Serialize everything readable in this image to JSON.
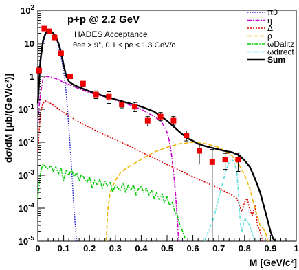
{
  "chart_data": {
    "type": "line",
    "xlabel": "M [GeV/c²]",
    "ylabel": "dσ/dM [μb/(GeV/c²)]",
    "xlim": [
      0,
      1
    ],
    "ylim": [
      1e-05,
      100
    ],
    "y_scale": "log",
    "x_ticks": [
      "0",
      "0.1",
      "0.2",
      "0.3",
      "0.4",
      "0.5",
      "0.6",
      "0.7",
      "0.8",
      "0.9",
      "1"
    ],
    "y_ticks": [
      {
        "base": "10",
        "exp": "2"
      },
      {
        "base": "10",
        "exp": ""
      },
      {
        "base": "1",
        "exp": ""
      },
      {
        "base": "10",
        "exp": "-1"
      },
      {
        "base": "10",
        "exp": "-2"
      },
      {
        "base": "10",
        "exp": "-3"
      },
      {
        "base": "10",
        "exp": "-4"
      },
      {
        "base": "10",
        "exp": "-5"
      }
    ],
    "annotations": {
      "title": "p+p @ 2.2 GeV",
      "subtitle": "HADES Acceptance",
      "cuts": "θee > 9°, 0.1 < pe < 1.3 GeV/c"
    },
    "legend": {
      "placement": "top-right",
      "entries": [
        {
          "label": "π0",
          "color": "#2222cc",
          "dash": "1.5,2"
        },
        {
          "label": "η",
          "color": "#cc00cc",
          "dash": "6,2,1.5,2"
        },
        {
          "label": "Δ",
          "color": "#dd0000",
          "dash": "2,2"
        },
        {
          "label": "ρ",
          "color": "#f0b400",
          "dash": "6,3"
        },
        {
          "label": "ωDalitz",
          "color": "#00cc00",
          "dash": "5,2,1.5,2"
        },
        {
          "label": "ωdirect",
          "color": "#55dddd",
          "dash": "5,2,1.5,2"
        },
        {
          "label": "Sum",
          "color": "#000000",
          "dash": ""
        }
      ]
    },
    "series": [
      {
        "name": "π0",
        "color": "#2222cc",
        "dash": "1.5,2",
        "width": 1.6,
        "x": [
          0.0,
          0.01,
          0.02,
          0.03,
          0.04,
          0.05,
          0.06,
          0.07,
          0.08,
          0.09,
          0.1,
          0.11,
          0.12,
          0.13,
          0.14,
          0.15
        ],
        "y": [
          0.1,
          2.2,
          10,
          18,
          22,
          22,
          19,
          14,
          8,
          4,
          1.5,
          0.3,
          0.03,
          0.002,
          0.0001,
          1e-05
        ]
      },
      {
        "name": "η",
        "color": "#cc00cc",
        "dash": "6,2,1.5,2",
        "width": 1.6,
        "x": [
          0.0,
          0.01,
          0.02,
          0.03,
          0.05,
          0.08,
          0.1,
          0.15,
          0.2,
          0.25,
          0.3,
          0.35,
          0.4,
          0.45,
          0.48,
          0.5,
          0.51,
          0.52,
          0.53,
          0.54,
          0.545
        ],
        "y": [
          0.04,
          0.3,
          0.8,
          1.0,
          0.95,
          0.8,
          0.65,
          0.45,
          0.32,
          0.25,
          0.19,
          0.14,
          0.1,
          0.06,
          0.04,
          0.02,
          0.01,
          0.003,
          0.0005,
          5e-05,
          1e-05
        ]
      },
      {
        "name": "Δ",
        "color": "#dd0000",
        "dash": "2,2",
        "width": 1.6,
        "x": [
          0.0,
          0.01,
          0.02,
          0.03,
          0.05,
          0.1,
          0.15,
          0.2,
          0.25,
          0.3,
          0.35,
          0.4,
          0.45,
          0.5,
          0.55,
          0.6,
          0.65,
          0.7,
          0.73,
          0.75,
          0.77,
          0.78,
          0.79,
          0.8,
          0.81,
          0.82,
          0.83,
          0.84,
          0.85,
          0.86,
          0.87
        ],
        "y": [
          0.005,
          0.08,
          0.15,
          0.18,
          0.15,
          0.08,
          0.045,
          0.028,
          0.018,
          0.012,
          0.008,
          0.005,
          0.0033,
          0.0021,
          0.0014,
          0.0009,
          0.0006,
          0.0004,
          0.0003,
          0.00025,
          0.0002,
          0.00012,
          8e-05,
          0.00015,
          0.0002,
          9e-05,
          6e-05,
          0.00012,
          3e-05,
          2e-05,
          1e-05
        ]
      },
      {
        "name": "ρ",
        "color": "#f0b400",
        "dash": "6,3",
        "width": 1.6,
        "x": [
          0.265,
          0.27,
          0.28,
          0.3,
          0.32,
          0.35,
          0.4,
          0.45,
          0.5,
          0.55,
          0.6,
          0.65,
          0.7,
          0.75,
          0.78,
          0.8,
          0.82,
          0.84,
          0.86,
          0.88,
          0.89
        ],
        "y": [
          1e-05,
          8e-05,
          0.0003,
          0.0007,
          0.0012,
          0.0018,
          0.003,
          0.005,
          0.007,
          0.009,
          0.01,
          0.009,
          0.007,
          0.004,
          0.002,
          0.001,
          0.0004,
          0.0001,
          3e-05,
          2e-05,
          1e-05
        ]
      },
      {
        "name": "ωDalitz",
        "color": "#00cc00",
        "dash": "5,2,1.5,2",
        "width": 1.6,
        "x": [
          0.0,
          0.01,
          0.02,
          0.03,
          0.04,
          0.05,
          0.06,
          0.07,
          0.08,
          0.09,
          0.1,
          0.11,
          0.12,
          0.13,
          0.14,
          0.15,
          0.16,
          0.17,
          0.18,
          0.19,
          0.2,
          0.21,
          0.22,
          0.23,
          0.24,
          0.25,
          0.26,
          0.27,
          0.28,
          0.29,
          0.3,
          0.31,
          0.32,
          0.33,
          0.34,
          0.35,
          0.36,
          0.37,
          0.38,
          0.39,
          0.4,
          0.41,
          0.42,
          0.43,
          0.44,
          0.45,
          0.46,
          0.47,
          0.48,
          0.49,
          0.5,
          0.51,
          0.52,
          0.53,
          0.54,
          0.55,
          0.56,
          0.57,
          0.575
        ],
        "y": [
          0.0002,
          0.0012,
          0.0022,
          0.0018,
          0.0015,
          0.002,
          0.0013,
          0.0018,
          0.0011,
          0.0016,
          0.0007,
          0.0014,
          0.001,
          0.0015,
          0.0009,
          0.0012,
          0.0007,
          0.0011,
          0.0008,
          0.0006,
          0.0009,
          0.0004,
          0.0007,
          0.0005,
          0.00075,
          0.0004,
          0.00065,
          0.00045,
          0.0006,
          0.0003,
          0.0005,
          0.0004,
          0.00035,
          0.0006,
          0.0003,
          0.0005,
          0.00035,
          0.0005,
          0.00025,
          0.0004,
          0.00045,
          0.0003,
          0.0004,
          0.00025,
          0.00035,
          0.0002,
          0.0003,
          0.00018,
          0.00028,
          0.00015,
          0.00022,
          0.00012,
          0.00015,
          8e-05,
          6e-05,
          3e-05,
          2e-05,
          1.2e-05,
          1e-05
        ]
      },
      {
        "name": "ωdirect",
        "color": "#55dddd",
        "dash": "5,2,1.5,2",
        "width": 1.6,
        "x": [
          0.645,
          0.66,
          0.68,
          0.7,
          0.72,
          0.73,
          0.74,
          0.75,
          0.76,
          0.77,
          0.775,
          0.78,
          0.785,
          0.79,
          0.8,
          0.82,
          0.84
        ],
        "y": [
          1e-05,
          2e-05,
          5e-05,
          0.0002,
          0.0008,
          0.0016,
          0.0025,
          0.003,
          0.0026,
          0.0012,
          0.0004,
          8e-05,
          3e-05,
          2e-05,
          5e-05,
          3e-05,
          1e-05
        ]
      },
      {
        "name": "Sum",
        "color": "#000000",
        "dash": "",
        "width": 2.4,
        "x": [
          0.0,
          0.01,
          0.02,
          0.03,
          0.04,
          0.05,
          0.06,
          0.07,
          0.08,
          0.09,
          0.1,
          0.11,
          0.12,
          0.13,
          0.14,
          0.15,
          0.2,
          0.25,
          0.3,
          0.35,
          0.4,
          0.45,
          0.5,
          0.55,
          0.58,
          0.6,
          0.62,
          0.65,
          0.7,
          0.72,
          0.75,
          0.78,
          0.8,
          0.82,
          0.84,
          0.86,
          0.88,
          0.9,
          0.91,
          0.92
        ],
        "y": [
          0.15,
          3,
          12,
          20,
          25,
          24,
          20,
          16,
          10,
          5.5,
          2.2,
          1.0,
          0.7,
          0.6,
          0.55,
          0.5,
          0.35,
          0.26,
          0.2,
          0.155,
          0.12,
          0.085,
          0.045,
          0.02,
          0.013,
          0.011,
          0.009,
          0.0075,
          0.006,
          0.0055,
          0.005,
          0.004,
          0.0028,
          0.0018,
          0.0008,
          0.0003,
          8e-05,
          2e-05,
          1.2e-05,
          1e-05
        ]
      }
    ],
    "data_points": {
      "name": "data",
      "color": "#ee0000",
      "x": [
        0.005,
        0.025,
        0.045,
        0.065,
        0.09,
        0.125,
        0.175,
        0.225,
        0.275,
        0.325,
        0.375,
        0.425,
        0.475,
        0.525,
        0.575,
        0.625,
        0.675,
        0.725,
        0.775
      ],
      "y": [
        1.5,
        28,
        23,
        15,
        5,
        1.0,
        0.6,
        0.28,
        0.24,
        0.14,
        0.12,
        0.045,
        0.06,
        0.045,
        0.016,
        0.0055,
        0.0025,
        0.003,
        0.003
      ],
      "err_low": [
        1.2,
        24,
        20,
        13,
        4.4,
        0.85,
        0.5,
        0.21,
        0.15,
        0.11,
        0.085,
        0.031,
        0.045,
        0.033,
        0.011,
        0.0022,
        1e-05,
        0.0015,
        0.0013
      ],
      "err_high": [
        1.8,
        32,
        27,
        17,
        5.6,
        1.15,
        0.7,
        0.36,
        0.34,
        0.17,
        0.16,
        0.06,
        0.08,
        0.06,
        0.022,
        0.009,
        0.006,
        0.0046,
        0.0047
      ]
    }
  }
}
